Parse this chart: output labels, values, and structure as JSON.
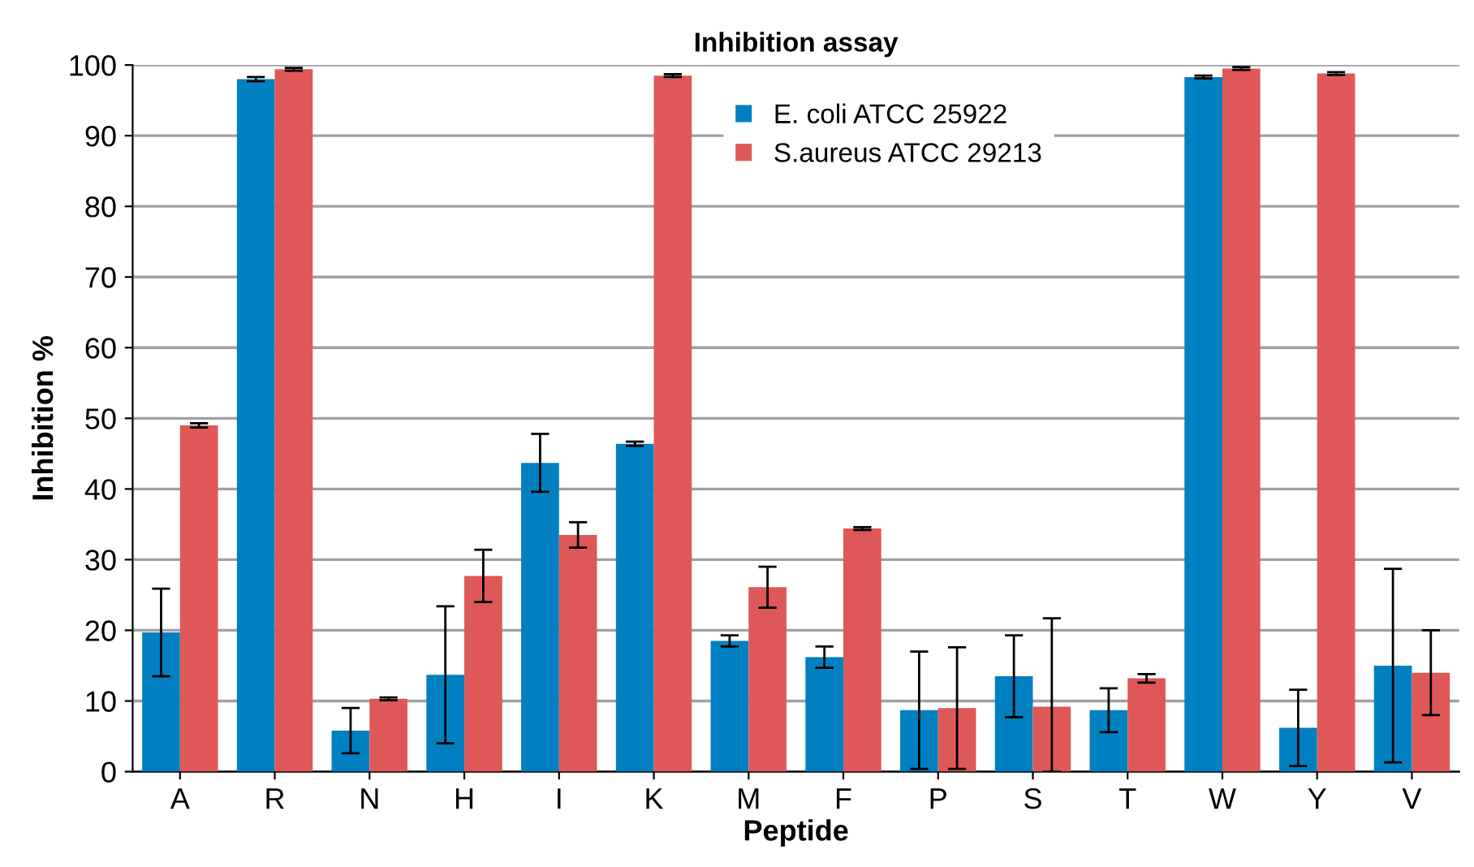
{
  "chart_data": {
    "type": "bar",
    "title": "Inhibition assay",
    "xlabel": "Peptide",
    "ylabel": "Inhibition %",
    "categories": [
      "A",
      "R",
      "N",
      "H",
      "I",
      "K",
      "M",
      "F",
      "P",
      "S",
      "T",
      "W",
      "Y",
      "V"
    ],
    "series": [
      {
        "name": "E. coli ATCC 25922",
        "color": "#0080c0",
        "values": [
          19.7,
          98,
          5.8,
          13.7,
          43.7,
          46.4,
          18.5,
          16.2,
          8.7,
          13.5,
          8.7,
          98.3,
          6.2,
          15
        ],
        "errors": [
          6.2,
          0.3,
          3.2,
          9.7,
          4.1,
          0.3,
          0.8,
          1.5,
          8.3,
          5.8,
          3.1,
          0.2,
          5.4,
          13.7
        ]
      },
      {
        "name": "S.aureus ATCC 29213",
        "color": "#de5858",
        "values": [
          49,
          99.4,
          10.3,
          27.7,
          33.5,
          98.5,
          26.1,
          34.4,
          9,
          9.2,
          13.2,
          99.5,
          98.8,
          14
        ],
        "errors": [
          0.3,
          0.2,
          0.2,
          3.7,
          1.8,
          0.2,
          2.9,
          0.2,
          8.6,
          [
            0,
            21.7
          ],
          0.6,
          0.2,
          0.2,
          6
        ]
      }
    ],
    "ylim": [
      0,
      100
    ],
    "yticks": [
      0,
      10,
      20,
      30,
      40,
      50,
      60,
      70,
      80,
      90,
      100
    ],
    "grid": "y",
    "legend": "top"
  }
}
